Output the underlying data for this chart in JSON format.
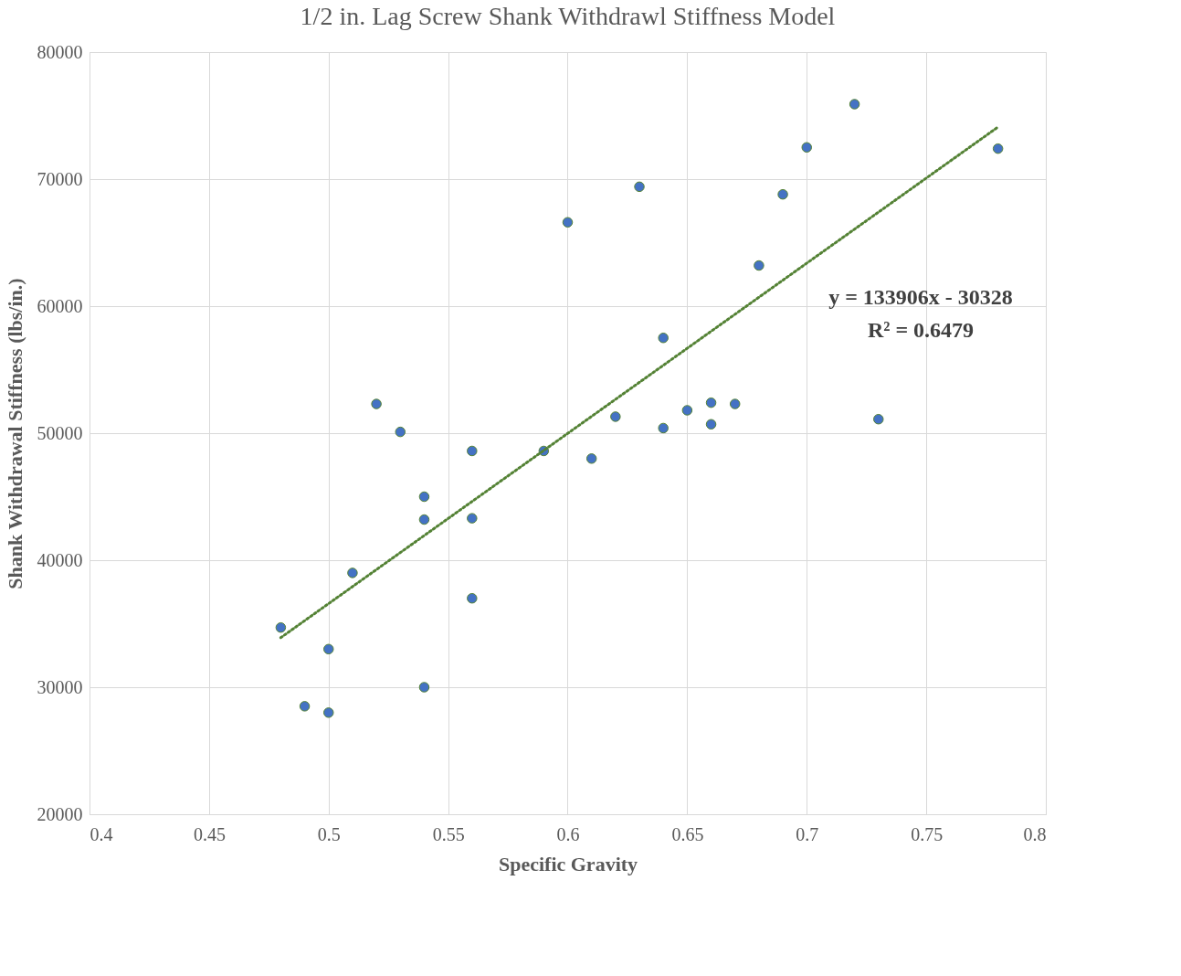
{
  "chart_data": {
    "type": "scatter",
    "title": "1/2 in. Lag Screw Shank Withdrawl Stiffness Model",
    "xlabel": "Specific Gravity",
    "ylabel": "Shank Withdrawal Stiffness (lbs/in.)",
    "xlim": [
      0.4,
      0.8
    ],
    "xticks": [
      0.4,
      0.45,
      0.5,
      0.55,
      0.6,
      0.65,
      0.7,
      0.75,
      0.8
    ],
    "ylim": [
      20000,
      80000
    ],
    "yticks": [
      20000,
      30000,
      40000,
      50000,
      60000,
      70000,
      80000
    ],
    "grid": true,
    "annotations": [
      "y = 133906x - 30328",
      "R² = 0.6479"
    ],
    "series": [
      {
        "type": "scatter",
        "color": "#4472c4",
        "marker": "circle",
        "x": [
          0.48,
          0.49,
          0.5,
          0.5,
          0.51,
          0.52,
          0.53,
          0.54,
          0.54,
          0.54,
          0.56,
          0.56,
          0.56,
          0.59,
          0.6,
          0.61,
          0.62,
          0.63,
          0.64,
          0.64,
          0.65,
          0.66,
          0.66,
          0.67,
          0.68,
          0.69,
          0.7,
          0.72,
          0.73,
          0.78
        ],
        "values": [
          34700,
          28500,
          33000,
          28000,
          39000,
          52300,
          50100,
          45000,
          43200,
          30000,
          48600,
          43300,
          37000,
          48600,
          66600,
          48000,
          51300,
          69400,
          57500,
          50400,
          51800,
          52400,
          50700,
          52300,
          63200,
          68800,
          72500,
          75900,
          51100,
          72400
        ]
      },
      {
        "type": "line",
        "color": "#548235",
        "marker": "none",
        "line_style": "dotted",
        "x": [
          0.48,
          0.78
        ],
        "values": [
          33900,
          74100
        ]
      }
    ]
  }
}
